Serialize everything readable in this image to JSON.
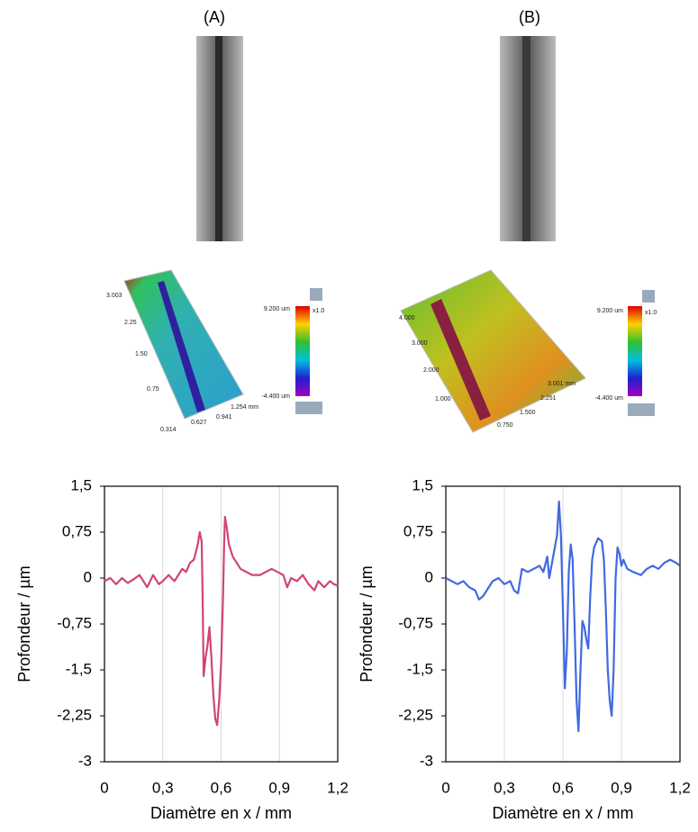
{
  "panels": [
    {
      "label": "(A)",
      "colorbar_max": "9.200 um",
      "colorbar_min": "-4.400 um",
      "zoom": "x1.0",
      "axis_labels": [
        "3.003",
        "2.25",
        "1.50",
        "0.75",
        "1.254 mm",
        "0.941",
        "0.627",
        "0.314"
      ]
    },
    {
      "label": "(B)",
      "colorbar_max": "9.200 um",
      "colorbar_min": "-4.400 um",
      "zoom": "x1.0",
      "axis_labels": [
        "4.000",
        "3.000",
        "2.000",
        "1.000",
        "3.001 mm",
        "2.251",
        "1.500",
        "0.750"
      ]
    }
  ],
  "chart_data": [
    {
      "type": "line",
      "xlabel": "Diamètre en x / mm",
      "ylabel": "Profondeur / µm",
      "color": "#d1456f",
      "grid": "x",
      "x": [
        0,
        0.03,
        0.06,
        0.09,
        0.12,
        0.15,
        0.18,
        0.2,
        0.22,
        0.25,
        0.28,
        0.3,
        0.33,
        0.36,
        0.38,
        0.4,
        0.42,
        0.44,
        0.46,
        0.48,
        0.49,
        0.5,
        0.505,
        0.51,
        0.52,
        0.53,
        0.54,
        0.55,
        0.56,
        0.57,
        0.58,
        0.59,
        0.6,
        0.61,
        0.615,
        0.62,
        0.63,
        0.64,
        0.66,
        0.68,
        0.7,
        0.73,
        0.76,
        0.8,
        0.83,
        0.86,
        0.89,
        0.92,
        0.94,
        0.96,
        0.99,
        1.02,
        1.05,
        1.08,
        1.1,
        1.13,
        1.16,
        1.18,
        1.2
      ],
      "values": [
        -0.05,
        0,
        -0.1,
        0,
        -0.08,
        -0.02,
        0.05,
        -0.05,
        -0.15,
        0.05,
        -0.1,
        -0.05,
        0.05,
        -0.05,
        0.05,
        0.15,
        0.1,
        0.25,
        0.3,
        0.55,
        0.75,
        0.6,
        -0.3,
        -1.6,
        -1.3,
        -1.1,
        -0.8,
        -1.3,
        -1.9,
        -2.3,
        -2.4,
        -2,
        -1.4,
        -0.3,
        0.5,
        1,
        0.8,
        0.55,
        0.35,
        0.25,
        0.15,
        0.1,
        0.05,
        0.05,
        0.1,
        0.15,
        0.1,
        0.05,
        -0.15,
        0,
        -0.05,
        0.05,
        -0.1,
        -0.2,
        -0.05,
        -0.15,
        -0.05,
        -0.1,
        -0.12
      ],
      "xlim": [
        0,
        1.2
      ],
      "xticks": [
        0,
        {
          "value": 0.3,
          "label": "0,3"
        },
        {
          "value": 0.6,
          "label": "0,6"
        },
        {
          "value": 0.9,
          "label": "0,9"
        },
        {
          "value": 1.2,
          "label": "1,2"
        }
      ],
      "ylim": [
        -3,
        1.5
      ],
      "yticks": [
        -3,
        {
          "value": -2.25,
          "label": "-2,25"
        },
        {
          "value": -1.5,
          "label": "-1,5"
        },
        {
          "value": -0.75,
          "label": "-0,75"
        },
        0,
        {
          "value": 0.75,
          "label": "0,75"
        },
        {
          "value": 1.5,
          "label": "1,5"
        }
      ]
    },
    {
      "type": "line",
      "xlabel": "Diamètre en x / mm",
      "ylabel": "Profondeur / µm",
      "color": "#4169e1",
      "grid": "x",
      "x": [
        0,
        0.03,
        0.06,
        0.09,
        0.12,
        0.15,
        0.17,
        0.19,
        0.21,
        0.24,
        0.27,
        0.3,
        0.33,
        0.35,
        0.37,
        0.39,
        0.42,
        0.45,
        0.48,
        0.5,
        0.52,
        0.53,
        0.55,
        0.57,
        0.58,
        0.59,
        0.6,
        0.61,
        0.62,
        0.63,
        0.64,
        0.65,
        0.66,
        0.67,
        0.68,
        0.69,
        0.7,
        0.71,
        0.72,
        0.73,
        0.74,
        0.75,
        0.76,
        0.78,
        0.8,
        0.81,
        0.82,
        0.83,
        0.84,
        0.85,
        0.86,
        0.87,
        0.88,
        0.89,
        0.9,
        0.91,
        0.93,
        0.96,
        1,
        1.03,
        1.06,
        1.09,
        1.12,
        1.15,
        1.18,
        1.2
      ],
      "values": [
        0,
        -0.05,
        -0.1,
        -0.05,
        -0.15,
        -0.2,
        -0.35,
        -0.3,
        -0.2,
        -0.05,
        0,
        -0.1,
        -0.05,
        -0.2,
        -0.25,
        0.15,
        0.1,
        0.15,
        0.2,
        0.1,
        0.35,
        0,
        0.35,
        0.7,
        1.25,
        0.7,
        -0.5,
        -1.8,
        -1.2,
        0.1,
        0.55,
        0.3,
        -0.8,
        -2,
        -2.5,
        -1.5,
        -0.7,
        -0.8,
        -1,
        -1.15,
        -0.3,
        0.3,
        0.5,
        0.65,
        0.6,
        0.3,
        -0.5,
        -1.5,
        -2,
        -2.25,
        -1.5,
        0,
        0.5,
        0.4,
        0.2,
        0.3,
        0.15,
        0.1,
        0.05,
        0.15,
        0.2,
        0.15,
        0.25,
        0.3,
        0.25,
        0.2
      ],
      "xlim": [
        0,
        1.2
      ],
      "xticks": [
        0,
        {
          "value": 0.3,
          "label": "0,3"
        },
        {
          "value": 0.6,
          "label": "0,6"
        },
        {
          "value": 0.9,
          "label": "0,9"
        },
        {
          "value": 1.2,
          "label": "1,2"
        }
      ],
      "ylim": [
        -3,
        1.5
      ],
      "yticks": [
        -3,
        {
          "value": -2.25,
          "label": "-2,25"
        },
        {
          "value": -1.5,
          "label": "-1,5"
        },
        {
          "value": -0.75,
          "label": "-0,75"
        },
        0,
        {
          "value": 0.75,
          "label": "0,75"
        },
        {
          "value": 1.5,
          "label": "1,5"
        }
      ]
    }
  ]
}
